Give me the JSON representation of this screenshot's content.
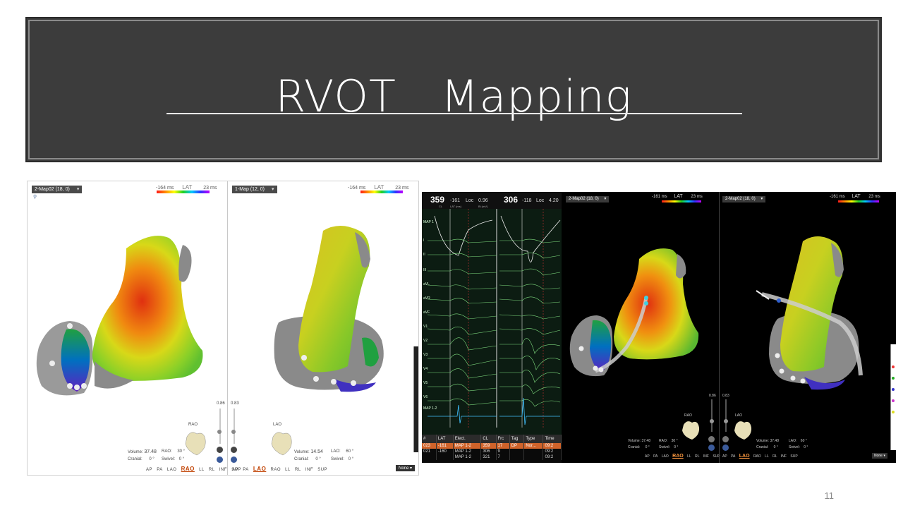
{
  "slide": {
    "title": "RVOT　Mapping",
    "page_number": "11"
  },
  "left_shot": {
    "pane_a": {
      "map_name": "2-Map02 (18, 0)",
      "lat_min": "-164 ms",
      "lat_title": "LAT",
      "lat_max": "23 ms",
      "zoom": "0.86",
      "orient_label": "RAO",
      "volume_label": "Volume:",
      "volume_value": "37.48",
      "cranial_label": "Cranial:",
      "cranial_value": "0 °",
      "angle_label": "RAO:",
      "angle_value": "30 °",
      "swivel_label": "Swivel:",
      "swivel_value": "0 °",
      "views": [
        "AP",
        "PA",
        "LAO",
        "RAO",
        "LL",
        "RL",
        "INF",
        "SUP"
      ],
      "selected_view": "RAO"
    },
    "pane_b": {
      "map_name": "1-Map (12, 0)",
      "lat_min": "-164 ms",
      "lat_title": "LAT",
      "lat_max": "23 ms",
      "zoom": "0.83",
      "orient_label": "LAO",
      "volume_label": "Volume:",
      "volume_value": "14.54",
      "cranial_label": "Cranial:",
      "cranial_value": "0 °",
      "angle_label": "LAO:",
      "angle_value": "60 °",
      "swivel_label": "Swivel:",
      "swivel_value": "0 °",
      "views": [
        "AP",
        "PA",
        "LAO",
        "RAO",
        "LL",
        "RL",
        "INF",
        "SUP"
      ],
      "selected_view": "LAO",
      "none_select": "None"
    }
  },
  "right_shot": {
    "ecg": {
      "cl_a": "359",
      "lat_a": "-161",
      "loc_label": "Loc",
      "loc_a": "0.96",
      "cl_b": "306",
      "lat_b": "-118",
      "loc_b": "4.20",
      "cl_caption": "CL",
      "lat_caption": "LAT (ms)",
      "bi_caption": "Bi (mV)",
      "scale": "200.0 mm/sec",
      "measure": "39 ms",
      "leads": [
        "MAP 1",
        "I",
        "II",
        "III",
        "aVL",
        "aVR",
        "aVF",
        "V1",
        "V2",
        "V3",
        "V4",
        "V5",
        "V6",
        "MAP 1-2"
      ]
    },
    "table": {
      "headers": [
        "#",
        "LAT",
        "Elect.",
        "CL",
        "Frc",
        "Tag",
        "Type",
        "Time"
      ],
      "rows": [
        [
          "023",
          "-161",
          "MAP 1-2",
          "359",
          "17",
          "DP",
          "Nor...",
          "09:2"
        ],
        [
          "021",
          "-160",
          "MAP 1-2",
          "306",
          "9",
          "",
          "",
          "09:2"
        ],
        [
          "",
          "",
          "MAP 1-2",
          "321",
          "7",
          "",
          "",
          "09:2"
        ]
      ]
    },
    "pane_a": {
      "map_name": "2-Map02 (18, 0)",
      "lat_min": "-161 ms",
      "lat_title": "LAT",
      "lat_max": "23 ms",
      "zoom": "0.86",
      "orient_label": "RAO",
      "volume_value": "37.48",
      "cranial_value": "0 °",
      "angle_label": "RAO:",
      "angle_value": "30 °",
      "swivel_value": "0 °",
      "views": [
        "AP",
        "PA",
        "LAO",
        "RAO",
        "LL",
        "RL",
        "INF",
        "SUP"
      ],
      "selected_view": "RAO"
    },
    "pane_b": {
      "map_name": "2-Map02 (18, 0)",
      "lat_min": "-161 ms",
      "lat_title": "LAT",
      "lat_max": "23 ms",
      "zoom": "0.83",
      "orient_label": "LAO",
      "volume_value": "37.48",
      "cranial_value": "0 °",
      "angle_label": "LAO:",
      "angle_value": "60 °",
      "swivel_value": "0 °",
      "views": [
        "AP",
        "PA",
        "LAO",
        "RAO",
        "LL",
        "RL",
        "INF",
        "SUP"
      ],
      "selected_view": "LAO",
      "none_select": "None"
    }
  },
  "colors": {
    "title_bg": "#3c3c3c",
    "accent_selected": "#c04000",
    "row_highlight": "#d0632a",
    "ecg_trace": "#7fdc7f"
  }
}
